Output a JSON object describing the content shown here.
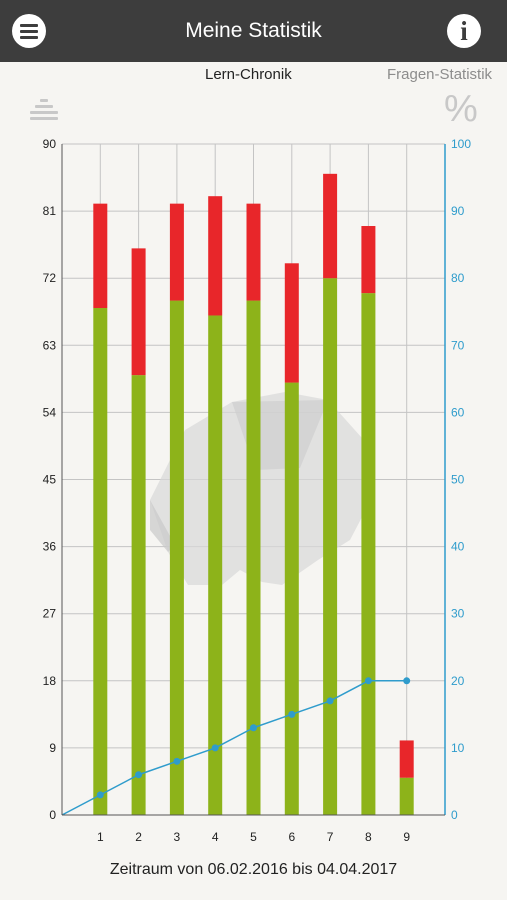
{
  "header": {
    "title": "Meine Statistik",
    "menu_icon": "hamburger-menu-icon",
    "info_icon": "info-icon",
    "info_glyph": "i"
  },
  "tabs": [
    {
      "label": "Lern-Chronik",
      "active": true
    },
    {
      "label": "Fragen-Statistik",
      "active": false
    }
  ],
  "toolbar": {
    "sort_icon": "sort-lines-icon",
    "percent_icon": "percent-icon",
    "percent_glyph": "%"
  },
  "footer": {
    "period_text": "Zeitraum von 06.02.2016 bis 04.04.2017"
  },
  "colors": {
    "correct": "#8db31a",
    "wrong": "#e8262a",
    "line": "#2f9ccc",
    "grid": "#c4c4c4",
    "axis_left": "#222222",
    "axis_right": "#2f9ccc",
    "watermark": "#d8d8d8"
  },
  "chart_data": {
    "type": "bar",
    "stacked": true,
    "categories": [
      "1",
      "2",
      "3",
      "4",
      "5",
      "6",
      "7",
      "8",
      "9"
    ],
    "series": [
      {
        "values": [
          68,
          59,
          69,
          67,
          69,
          58,
          72,
          70,
          5
        ]
      },
      {
        "values": [
          14,
          17,
          13,
          16,
          13,
          16,
          14,
          9,
          5
        ]
      }
    ],
    "line_series": {
      "axis": "right",
      "values": [
        3,
        6,
        8,
        10,
        13,
        15,
        17,
        20,
        20
      ]
    },
    "ylim_left": [
      0,
      90
    ],
    "yticks_left": [
      0,
      9,
      18,
      27,
      36,
      45,
      54,
      63,
      72,
      81,
      90
    ],
    "ylim_right": [
      0,
      100
    ],
    "yticks_right": [
      0,
      10,
      20,
      30,
      40,
      50,
      60,
      70,
      80,
      90,
      100
    ],
    "xlim": [
      0,
      10
    ],
    "grid": true,
    "watermark": "elephant-logo-watermark"
  }
}
